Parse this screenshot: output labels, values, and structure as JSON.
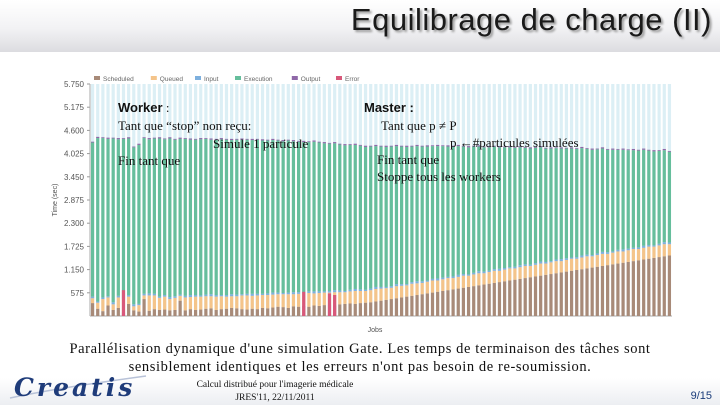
{
  "slide": {
    "title": "Equilibrage de charge (II)",
    "caption_line1": "Parallélisation dynamique d'une simulation Gate. Les temps de terminaison des tâches sont",
    "caption_line2": "sensiblement identiques et les erreurs n'ont pas besoin de re-soumission.",
    "footer_line1": "Calcul distribué pour l'imagerie médicale",
    "footer_line2": "JRES'11, 22/11/2011",
    "page_number": "9/15",
    "logo_text": "Creatis"
  },
  "pseudocode": {
    "worker_title": "Worker",
    "worker_colon": " :",
    "worker_line1": "Tant que “stop” non reçu:",
    "worker_line2": "Simule 1 particule",
    "worker_line3": "Fin tant que",
    "master_title": "Master :",
    "master_line1": "Tant que p ≠ P",
    "master_line2": "p ←#particules simulées",
    "master_line3": "Fin tant que",
    "master_line4": "Stoppe tous les workers"
  },
  "colors": {
    "scheduled": "#a88a78",
    "queued": "#f4c48a",
    "input": "#7eb0de",
    "execution": "#66be9c",
    "output": "#8f68a8",
    "error": "#d8587a",
    "background_bars": "#bfe1ec",
    "axis_text": "#555555"
  },
  "chart_data": {
    "type": "bar",
    "stacked": true,
    "xlabel": "Jobs",
    "ylabel": "Time (sec)",
    "ylim": [
      0,
      5750
    ],
    "y_ticks": [
      575,
      1150,
      1725,
      2300,
      2875,
      3450,
      4025,
      4600,
      5175,
      5750
    ],
    "y_tick_labels": [
      "575",
      "1.150",
      "1.725",
      "2.300",
      "2.875",
      "3.450",
      "4.025",
      "4.600",
      "5.175",
      "5.750"
    ],
    "legend_position": "top",
    "legend": [
      "Scheduled",
      "Queued",
      "Input",
      "Execution",
      "Output",
      "Error"
    ],
    "series": [
      {
        "name": "Scheduled",
        "values": [
          320,
          180,
          120,
          260,
          150,
          200,
          90,
          300,
          140,
          110,
          420,
          130,
          170,
          150,
          160,
          140,
          150,
          380,
          140,
          170,
          150,
          160,
          180,
          190,
          150,
          170,
          180,
          200,
          190,
          170,
          160,
          180,
          170,
          200,
          190,
          210,
          230,
          220,
          200,
          240,
          230,
          250,
          230,
          260,
          250,
          270,
          280,
          260,
          290,
          300,
          310,
          300,
          320,
          330,
          340,
          360,
          380,
          400,
          420,
          440,
          460,
          480,
          500,
          520,
          540,
          560,
          580,
          600,
          620,
          640,
          660,
          680,
          700,
          720,
          740,
          760,
          780,
          800,
          820,
          840,
          860,
          880,
          900,
          920,
          940,
          960,
          980,
          1000,
          1020,
          1040,
          1060,
          1080,
          1100,
          1120,
          1140,
          1160,
          1180,
          1200,
          1220,
          1240,
          1260,
          1280,
          1300,
          1320,
          1340,
          1360,
          1380,
          1400,
          1420,
          1440,
          1460,
          1480,
          1500
        ]
      },
      {
        "name": "Queued",
        "values": [
          120,
          150,
          300,
          200,
          140,
          260,
          320,
          180,
          100,
          160,
          90,
          380,
          340,
          300,
          320,
          280,
          300,
          120,
          320,
          300,
          330,
          320,
          310,
          300,
          330,
          320,
          300,
          290,
          300,
          340,
          350,
          320,
          340,
          320,
          330,
          320,
          310,
          320,
          340,
          300,
          320,
          310,
          340,
          300,
          320,
          310,
          300,
          330,
          300,
          290,
          300,
          320,
          300,
          290,
          300,
          310,
          300,
          290,
          280,
          300,
          290,
          280,
          300,
          290,
          280,
          290,
          300,
          280,
          290,
          300,
          280,
          290,
          300,
          280,
          290,
          300,
          280,
          290,
          300,
          280,
          290,
          300,
          280,
          290,
          300,
          280,
          290,
          300,
          280,
          290,
          300,
          280,
          290,
          300,
          280,
          290,
          300,
          280,
          290,
          300,
          280,
          290,
          300,
          280,
          290,
          300,
          280,
          290,
          300,
          280,
          290,
          300,
          280
        ]
      },
      {
        "name": "Input",
        "values": [
          40,
          30,
          40,
          30,
          50,
          40,
          30,
          40,
          50,
          30,
          40,
          50,
          40,
          30,
          40,
          50,
          40,
          30,
          40,
          50,
          40,
          30,
          40,
          50,
          40,
          30,
          40,
          50,
          40,
          30,
          40,
          50,
          40,
          30,
          40,
          50,
          40,
          30,
          40,
          50,
          40,
          30,
          40,
          50,
          40,
          30,
          40,
          50,
          40,
          30,
          40,
          50,
          40,
          30,
          40,
          50,
          40,
          30,
          40,
          50,
          40,
          30,
          40,
          50,
          40,
          30,
          40,
          50,
          40,
          30,
          40,
          50,
          40,
          30,
          40,
          50,
          40,
          30,
          40,
          50,
          40,
          30,
          40,
          50,
          40,
          30,
          40,
          50,
          40,
          30,
          40,
          50,
          40,
          30,
          40,
          50,
          40,
          30,
          40,
          50,
          40,
          30,
          40,
          50,
          40,
          30,
          40,
          50,
          40,
          30,
          40,
          50,
          40
        ]
      },
      {
        "name": "Execution",
        "values": [
          3820,
          4050,
          3950,
          3900,
          4060,
          3880,
          3950,
          3880,
          3890,
          3940,
          3860,
          3820,
          3850,
          3920,
          3860,
          3930,
          3880,
          3860,
          3890,
          3850,
          3850,
          3870,
          3860,
          3830,
          3850,
          3860,
          3850,
          3820,
          3840,
          3830,
          3820,
          3810,
          3820,
          3800,
          3790,
          3780,
          3770,
          3760,
          3770,
          3740,
          3730,
          3720,
          3700,
          3710,
          3690,
          3670,
          3650,
          3640,
          3620,
          3610,
          3590,
          3570,
          3560,
          3540,
          3520,
          3490,
          3480,
          3470,
          3460,
          3420,
          3410,
          3400,
          3360,
          3350,
          3340,
          3320,
          3290,
          3280,
          3260,
          3230,
          3220,
          3190,
          3160,
          3150,
          3130,
          3090,
          3080,
          3060,
          3040,
          3010,
          2990,
          2970,
          2950,
          2920,
          2890,
          2880,
          2860,
          2830,
          2810,
          2790,
          2760,
          2740,
          2720,
          2700,
          2680,
          2660,
          2620,
          2610,
          2580,
          2560,
          2540,
          2520,
          2480,
          2470,
          2440,
          2420,
          2400,
          2380,
          2340,
          2330,
          2300,
          2280,
          2250
        ]
      },
      {
        "name": "Output",
        "values": [
          20,
          30,
          20,
          30,
          20,
          30,
          20,
          30,
          20,
          30,
          20,
          30,
          20,
          30,
          20,
          30,
          20,
          30,
          20,
          30,
          20,
          30,
          20,
          30,
          20,
          30,
          20,
          30,
          20,
          30,
          20,
          30,
          20,
          30,
          20,
          30,
          20,
          30,
          20,
          30,
          20,
          30,
          20,
          30,
          20,
          30,
          20,
          30,
          20,
          30,
          20,
          30,
          20,
          30,
          20,
          30,
          20,
          30,
          20,
          30,
          20,
          30,
          20,
          30,
          20,
          30,
          20,
          30,
          20,
          30,
          20,
          30,
          20,
          30,
          20,
          30,
          20,
          30,
          20,
          30,
          20,
          30,
          20,
          30,
          20,
          30,
          20,
          30,
          20,
          30,
          20,
          30,
          20,
          30,
          20,
          30,
          20,
          30,
          20,
          30,
          20,
          30,
          20,
          30,
          20,
          30,
          20,
          30,
          20,
          30,
          20,
          30,
          20
        ]
      },
      {
        "name": "Error",
        "values": [
          0,
          0,
          0,
          0,
          0,
          0,
          0,
          0,
          0,
          0,
          0,
          0,
          0,
          0,
          0,
          0,
          0,
          0,
          0,
          0,
          0,
          0,
          0,
          0,
          0,
          0,
          0,
          0,
          0,
          0,
          0,
          0,
          0,
          0,
          0,
          0,
          0,
          0,
          0,
          0,
          0,
          0,
          0,
          0,
          0,
          0,
          0,
          0,
          0,
          0,
          0,
          0,
          0,
          0,
          0,
          0,
          0,
          0,
          0,
          0,
          0,
          0,
          0,
          0,
          0,
          0,
          0,
          0,
          0,
          0,
          0,
          0,
          0,
          0,
          0,
          0,
          0,
          0,
          0,
          0,
          0,
          0,
          0,
          0,
          0,
          0,
          0,
          0,
          0,
          0,
          0,
          0,
          0,
          0,
          0,
          0,
          0,
          0,
          0,
          0,
          0,
          0,
          0,
          0,
          0,
          0,
          0,
          0,
          0,
          0,
          0,
          0,
          0
        ]
      }
    ],
    "error_only_jobs": [
      {
        "index": 6,
        "value": 640
      },
      {
        "index": 41,
        "value": 600
      },
      {
        "index": 46,
        "value": 560
      },
      {
        "index": 47,
        "value": 520
      }
    ]
  }
}
